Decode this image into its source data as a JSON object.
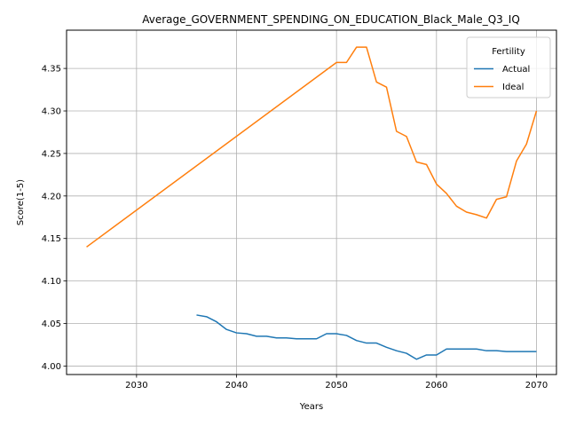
{
  "chart_data": {
    "type": "line",
    "title": "Average_GOVERNMENT_SPENDING_ON_EDUCATION_Black_Male_Q3_IQ",
    "xlabel": "Years",
    "ylabel": "Score(1-5)",
    "xlim": [
      2023,
      2072
    ],
    "ylim": [
      3.99,
      4.395
    ],
    "xticks": [
      2030,
      2040,
      2050,
      2060,
      2070
    ],
    "yticks": [
      4.0,
      4.05,
      4.1,
      4.15,
      4.2,
      4.25,
      4.3,
      4.35
    ],
    "grid": true,
    "legend": {
      "title": "Fertility",
      "placement": "top-right"
    },
    "series": [
      {
        "name": "Actual",
        "color": "#1f77b4",
        "x": [
          2036,
          2037,
          2038,
          2039,
          2040,
          2041,
          2042,
          2043,
          2044,
          2045,
          2046,
          2047,
          2048,
          2049,
          2050,
          2051,
          2052,
          2053,
          2054,
          2055,
          2056,
          2057,
          2058,
          2059,
          2060,
          2061,
          2062,
          2063,
          2064,
          2065,
          2066,
          2067,
          2068,
          2069,
          2070
        ],
        "y": [
          4.06,
          4.058,
          4.052,
          4.043,
          4.039,
          4.038,
          4.035,
          4.035,
          4.033,
          4.033,
          4.032,
          4.032,
          4.032,
          4.038,
          4.038,
          4.036,
          4.03,
          4.027,
          4.027,
          4.022,
          4.018,
          4.015,
          4.008,
          4.013,
          4.013,
          4.02,
          4.02,
          4.02,
          4.02,
          4.018,
          4.018,
          4.017,
          4.017,
          4.017,
          4.017
        ]
      },
      {
        "name": "Ideal",
        "color": "#ff7f0e",
        "x": [
          2025,
          2050,
          2051,
          2052,
          2053,
          2054,
          2055,
          2056,
          2057,
          2058,
          2059,
          2060,
          2061,
          2062,
          2063,
          2064,
          2065,
          2066,
          2067,
          2068,
          2069,
          2070
        ],
        "y": [
          4.14,
          4.357,
          4.357,
          4.375,
          4.375,
          4.334,
          4.328,
          4.276,
          4.27,
          4.24,
          4.237,
          4.214,
          4.203,
          4.188,
          4.181,
          4.178,
          4.174,
          4.196,
          4.199,
          4.241,
          4.261,
          4.3
        ]
      }
    ]
  }
}
